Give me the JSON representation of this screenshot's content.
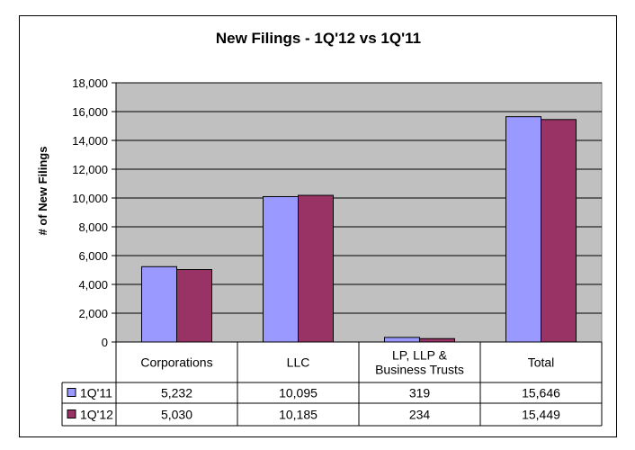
{
  "chart_data": {
    "type": "bar",
    "title": "New Filings - 1Q'12 vs 1Q'11",
    "ylabel": "# of New Filings",
    "xlabel": "",
    "ylim": [
      0,
      18000
    ],
    "yticks": [
      "0",
      "2,000",
      "4,000",
      "6,000",
      "8,000",
      "10,000",
      "12,000",
      "14,000",
      "16,000",
      "18,000"
    ],
    "grid": true,
    "legend": "data-table",
    "categories": [
      "Corporations",
      "LLC",
      "LP, LLP & Business Trusts",
      "Total"
    ],
    "category_lines": [
      [
        "Corporations"
      ],
      [
        "LLC"
      ],
      [
        "LP, LLP &",
        "Business Trusts"
      ],
      [
        "Total"
      ]
    ],
    "series": [
      {
        "name": "1Q'11",
        "color": "#9999ff",
        "values": [
          5232,
          10095,
          319,
          15646
        ],
        "labels": [
          "5,232",
          "10,095",
          "319",
          "15,646"
        ]
      },
      {
        "name": "1Q'12",
        "color": "#993366",
        "values": [
          5030,
          10185,
          234,
          15449
        ],
        "labels": [
          "5,030",
          "10,185",
          "234",
          "15,449"
        ]
      }
    ],
    "plot_background": "#c0c0c0"
  }
}
